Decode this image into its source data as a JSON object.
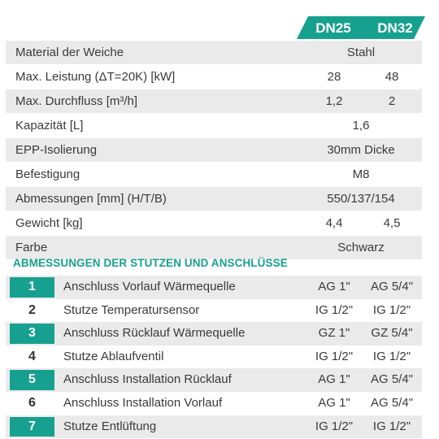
{
  "header": {
    "col1": "DN25",
    "col2": "DN32"
  },
  "specs": [
    {
      "label": "Material der Weiche",
      "span": "Stahl"
    },
    {
      "label": "Max. Leistung (ΔT=20K) [kW]",
      "v1": "28",
      "v2": "48"
    },
    {
      "label": "Max. Durchfluss [m³/h]",
      "v1": "1,2",
      "v2": "2"
    },
    {
      "label": "Kapazität [L]",
      "span": "1,6"
    },
    {
      "label": "EPP-Isolierung",
      "span": "30mm Dicke"
    },
    {
      "label": "Befestigung",
      "span": "M8"
    },
    {
      "label": "Abmessungen [mm] (H/T/B)",
      "span": "550/137/154"
    },
    {
      "label": "Gewicht [kg]",
      "v1": "4,4",
      "v2": "4,5"
    },
    {
      "label": "Farbe",
      "span": "Schwarz"
    }
  ],
  "section_title": "ABMESSUNGEN DER STUTZEN UND ANSCHLÜSSE",
  "connections": [
    {
      "num": "1",
      "label": "Anschluss Vorlauf Wärmequelle",
      "v1": "AG 1\"",
      "v2": "AG 5/4\""
    },
    {
      "num": "2",
      "label": "Stutze Temperatursensor",
      "v1": "IG 1/2\"",
      "v2": "IG 1/2\""
    },
    {
      "num": "3",
      "label": "Anschluss Rücklauf Wärmequelle",
      "v1": "GZ 1\"",
      "v2": "GZ 5/4\""
    },
    {
      "num": "4",
      "label": "Stutze Ablaufventil",
      "v1": "IG 1/2\"",
      "v2": "IG 1/2\""
    },
    {
      "num": "5",
      "label": "Anschluss Installation Rücklauf",
      "v1": "AG 1\"",
      "v2": "AG 5/4\""
    },
    {
      "num": "6",
      "label": "Anschluss Installation Vorlauf",
      "v1": "AG 1\"",
      "v2": "AG 5/4\""
    },
    {
      "num": "7",
      "label": "Stutze Entlüftung",
      "v1": "IG 1/2\"",
      "v2": "IG 1/2\""
    }
  ],
  "colors": {
    "accent": "#16a090",
    "row_shade": "#eaeaea",
    "text": "#3a3a3a"
  }
}
